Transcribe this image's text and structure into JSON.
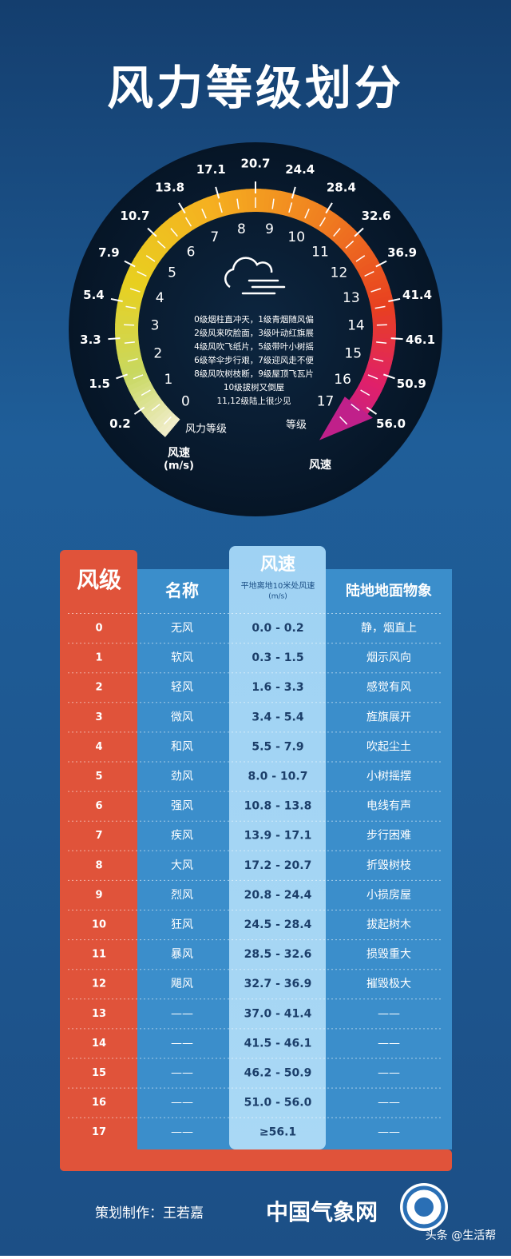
{
  "title": "风力等级划分",
  "gauge": {
    "speeds": [
      "0.2",
      "1.5",
      "3.3",
      "5.4",
      "7.9",
      "10.7",
      "13.8",
      "17.1",
      "20.7",
      "24.4",
      "28.4",
      "32.6",
      "36.9",
      "41.4",
      "46.1",
      "50.9",
      "56.0"
    ],
    "levels": [
      "0",
      "1",
      "2",
      "3",
      "4",
      "5",
      "6",
      "7",
      "8",
      "9",
      "10",
      "11",
      "12",
      "13",
      "14",
      "15",
      "16",
      "17"
    ],
    "descriptions": [
      "0级烟柱直冲天，1级青烟随风偏",
      "2级风来吹脸面，3级叶动红旗展",
      "4级风吹飞纸片，5级带叶小树摇",
      "6级举伞步行艰，7级迎风走不便",
      "8级风吹树枝断，9级屋顶飞瓦片",
      "10级拔树又倒屋",
      "11,12级陆上很少见"
    ],
    "level_label": "风力等级",
    "grade_label": "等级",
    "speed_label": "风速",
    "speed_unit": "(m/s)",
    "speed_label_right": "风速"
  },
  "table": {
    "headers": {
      "level": "风级",
      "name": "名称",
      "speed": "风速",
      "speed_note": "平地离地10米处风速",
      "speed_unit": "(m/s)",
      "effect": "陆地地面物象"
    },
    "rows": [
      [
        "0",
        "无风",
        "0.0 - 0.2",
        "静，烟直上"
      ],
      [
        "1",
        "软风",
        "0.3 - 1.5",
        "烟示风向"
      ],
      [
        "2",
        "轻风",
        "1.6 - 3.3",
        "感觉有风"
      ],
      [
        "3",
        "微风",
        "3.4 - 5.4",
        "旌旗展开"
      ],
      [
        "4",
        "和风",
        "5.5 - 7.9",
        "吹起尘土"
      ],
      [
        "5",
        "劲风",
        "8.0 - 10.7",
        "小树摇摆"
      ],
      [
        "6",
        "强风",
        "10.8 - 13.8",
        "电线有声"
      ],
      [
        "7",
        "疾风",
        "13.9 - 17.1",
        "步行困难"
      ],
      [
        "8",
        "大风",
        "17.2 - 20.7",
        "折毁树枝"
      ],
      [
        "9",
        "烈风",
        "20.8 - 24.4",
        "小损房屋"
      ],
      [
        "10",
        "狂风",
        "24.5 - 28.4",
        "拔起树木"
      ],
      [
        "11",
        "暴风",
        "28.5 - 32.6",
        "损毁重大"
      ],
      [
        "12",
        "飓风",
        "32.7 - 36.9",
        "摧毁极大"
      ],
      [
        "13",
        "——",
        "37.0 - 41.4",
        "——"
      ],
      [
        "14",
        "——",
        "41.5 - 46.1",
        "——"
      ],
      [
        "15",
        "——",
        "46.2 - 50.9",
        "——"
      ],
      [
        "16",
        "——",
        "51.0 - 56.0",
        "——"
      ],
      [
        "17",
        "——",
        "≥56.1",
        "——"
      ]
    ]
  },
  "footer": {
    "credit": "策划制作：王若嘉",
    "brand": "中国气象网",
    "watermark": "头条 @生活帮"
  }
}
